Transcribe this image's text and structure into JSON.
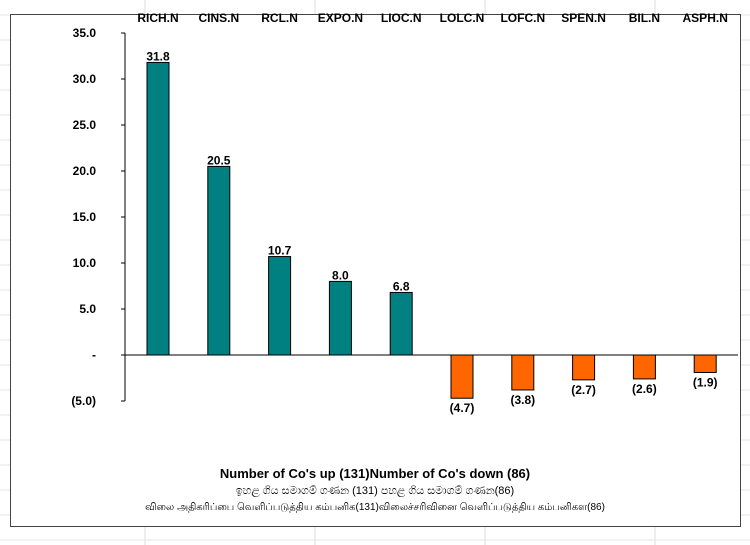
{
  "chart_data": {
    "type": "bar",
    "categories": [
      "RICH.N",
      "CINS.N",
      "RCL.N",
      "EXPO.N",
      "LIOC.N",
      "LOLC.N",
      "LOFC.N",
      "SPEN.N",
      "BIL.N",
      "ASPH.N"
    ],
    "values": [
      31.8,
      20.5,
      10.7,
      8.0,
      6.8,
      -4.7,
      -3.8,
      -2.7,
      -2.6,
      -1.9
    ],
    "data_labels": [
      "31.8",
      "20.5",
      "10.7",
      "8.0",
      "6.8",
      "(4.7)",
      "(3.8)",
      "(2.7)",
      "(2.6)",
      "(1.9)"
    ],
    "ylim": [
      -5,
      35
    ],
    "yticks": [
      35,
      30,
      25,
      20,
      15,
      10,
      5,
      0,
      -5
    ],
    "ytick_labels": [
      "35.0",
      "30.0",
      "25.0",
      "20.0",
      "15.0",
      "10.0",
      "5.0",
      "-",
      "(5.0)"
    ],
    "colors": {
      "positive": "#008080",
      "negative": "#FF6600"
    },
    "title": "",
    "xlabel": "",
    "ylabel": "",
    "grid": false
  },
  "footer": {
    "english": "Number of Co's up (131)Number of Co's down  (86)",
    "sinhala": "ඉහළ ගිය සමාගම් ගණන (131) පහළ ගිය සමාගම් ගණන(86)",
    "tamil": "விலை அதிகரிப்பை வெளிப்படுத்திய கம்பனிக(131)விலைச்சரிவினை வெளிப்படுத்திய கம்பனிகள(86)"
  }
}
